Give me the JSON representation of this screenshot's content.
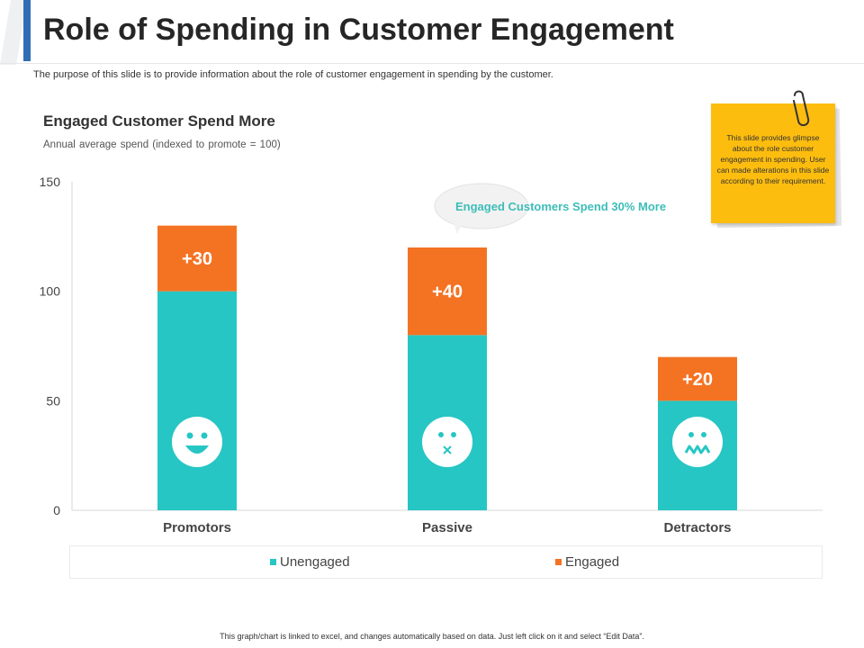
{
  "header": {
    "title": "Role of Spending in Customer Engagement",
    "subtitle": "The purpose of this slide is to provide information about the role of customer engagement in spending by the customer.",
    "accent_color": "#2f6eb5"
  },
  "callout": {
    "text": "Engaged Customers Spend 30% More"
  },
  "note": {
    "text": "This slide provides glimpse about the role customer engagement in spending. User can made alterations in this slide according to their requirement."
  },
  "footer": {
    "text": "This graph/chart is linked to excel, and changes automatically based on data. Just left click on it and select “Edit Data”."
  },
  "chart_data": {
    "type": "bar",
    "stacked": true,
    "title": "Engaged Customer Spend More",
    "subtitle": "Annual average  spend (indexed to promote = 100)",
    "categories": [
      "Promotors",
      "Passive",
      "Detractors"
    ],
    "series": [
      {
        "name": "Unengaged",
        "values": [
          100,
          80,
          50
        ],
        "color": "#26c6c4"
      },
      {
        "name": "Engaged",
        "values": [
          30,
          40,
          20
        ],
        "color": "#f47323"
      }
    ],
    "data_labels": [
      "+30",
      "+40",
      "+20"
    ],
    "faces": [
      "happy-face-icon",
      "neutral-face-icon",
      "sad-face-icon"
    ],
    "ylim": [
      0,
      150
    ],
    "yticks": [
      0,
      50,
      100,
      150
    ],
    "grid": false,
    "legend_position": "bottom"
  }
}
